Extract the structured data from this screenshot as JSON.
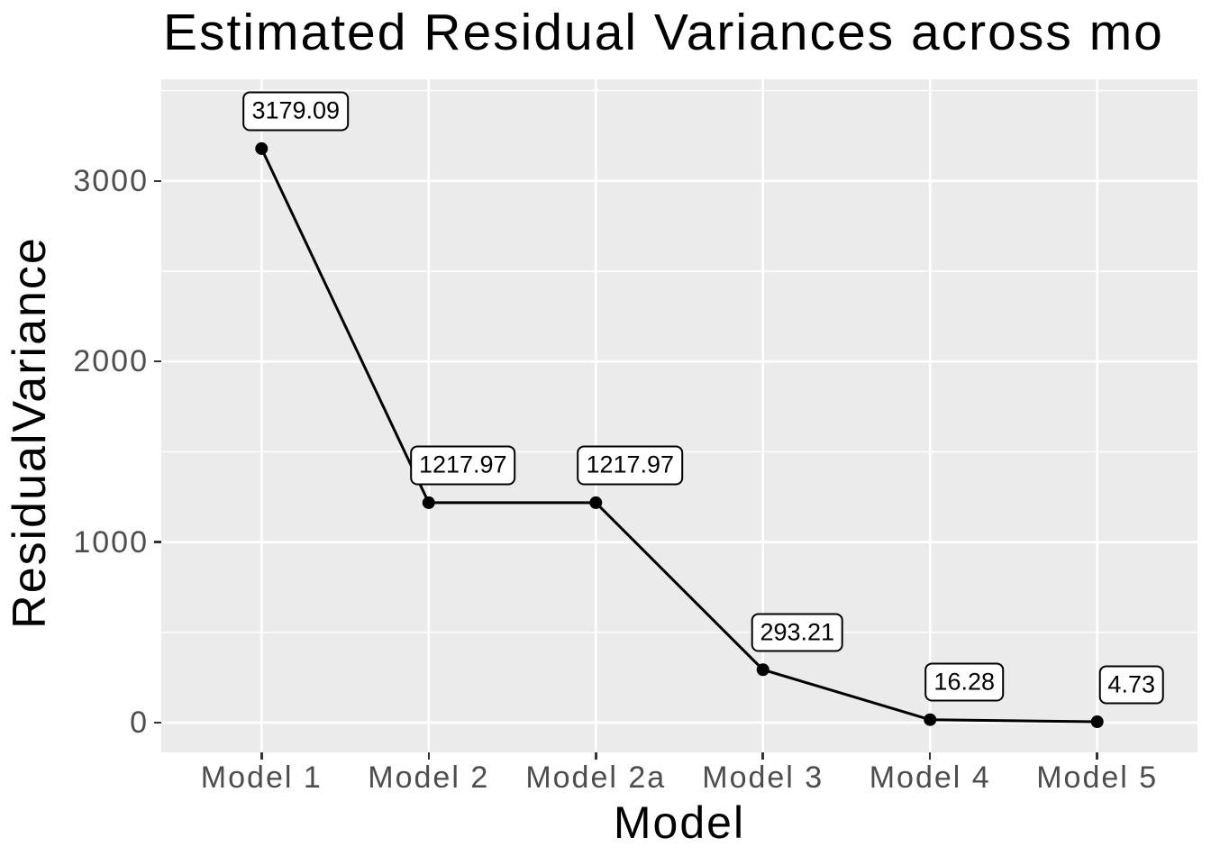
{
  "title": "Estimated Residual Variances across mo",
  "axes": {
    "x": {
      "title": "Model",
      "tick_labels": [
        "Model 1",
        "Model 2",
        "Model 2a",
        "Model 3",
        "Model 4",
        "Model 5"
      ]
    },
    "y": {
      "title": "ResidualVariance",
      "tick_labels": [
        "0",
        "1000",
        "2000",
        "3000"
      ],
      "tick_values": [
        0,
        1000,
        2000,
        3000
      ],
      "minor_tick_values": [
        500,
        1500,
        2500,
        3500
      ]
    }
  },
  "chart_data": {
    "type": "line",
    "title": "Estimated Residual Variances across mo",
    "xlabel": "Model",
    "ylabel": "ResidualVariance",
    "categories": [
      "Model 1",
      "Model 2",
      "Model 2a",
      "Model 3",
      "Model 4",
      "Model 5"
    ],
    "values": [
      3179.09,
      1217.97,
      1217.97,
      293.21,
      16.28,
      4.73
    ],
    "point_labels": [
      "3179.09",
      "1217.97",
      "1217.97",
      "293.21",
      "16.28",
      "4.73"
    ],
    "yticks": [
      0,
      1000,
      2000,
      3000
    ],
    "yticks_minor": [
      500,
      1500,
      2500,
      3500
    ],
    "ylim": [
      -165,
      3563
    ],
    "grid": "major-and-minor, white on gray panel",
    "legend": "none",
    "marker": "filled-circle",
    "point_labels_boxed": true
  },
  "colors": {
    "page_background": "#FFFFFF",
    "panel_background": "#EBEBEB",
    "grid_major": "#FFFFFF",
    "grid_minor": "#FFFFFF",
    "axis_text": "#4D4D4D",
    "tick_mark": "#333333",
    "title_text": "#000000",
    "line": "#000000",
    "point": "#000000",
    "label_fill": "#FFFFFF",
    "label_border": "#000000",
    "label_text": "#000000"
  }
}
